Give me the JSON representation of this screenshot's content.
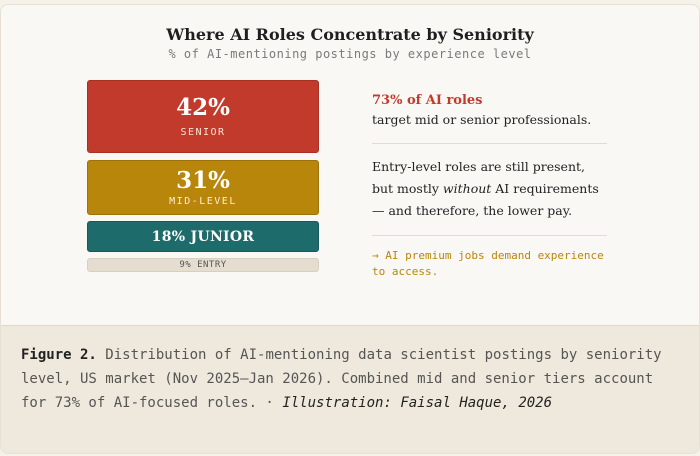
{
  "chart_data": {
    "type": "bar",
    "title": "Where AI Roles Concentrate by Seniority",
    "subtitle": "% of AI-mentioning postings by experience level",
    "categories": [
      "SENIOR",
      "MID-LEVEL",
      "JUNIOR",
      "ENTRY"
    ],
    "values": [
      42,
      31,
      18,
      9
    ],
    "value_labels": [
      "42%",
      "31%",
      "18% JUNIOR",
      "9% ENTRY"
    ],
    "colors": [
      "#c23a2b",
      "#b8860b",
      "#1e6b6b",
      "#e5ded0"
    ],
    "orientation": "stacked-horizontal-blocks"
  },
  "notes": {
    "highlight": "73% of AI roles",
    "line1": "target mid or senior professionals.",
    "para_before": "Entry-level roles are still present, but mostly",
    "para_em": "without",
    "para_after": "AI requirements — and therefore, the lower pay.",
    "footer": "→ AI premium jobs demand experience to access."
  },
  "caption": {
    "label": "Figure 2.",
    "text": "Distribution of AI-mentioning data scientist postings by seniority level, US market (Nov 2025–Jan 2026). Combined mid and senior tiers account for 73% of AI-focused roles. ·",
    "credit": "Illustration: Faisal Haque, 2026"
  }
}
